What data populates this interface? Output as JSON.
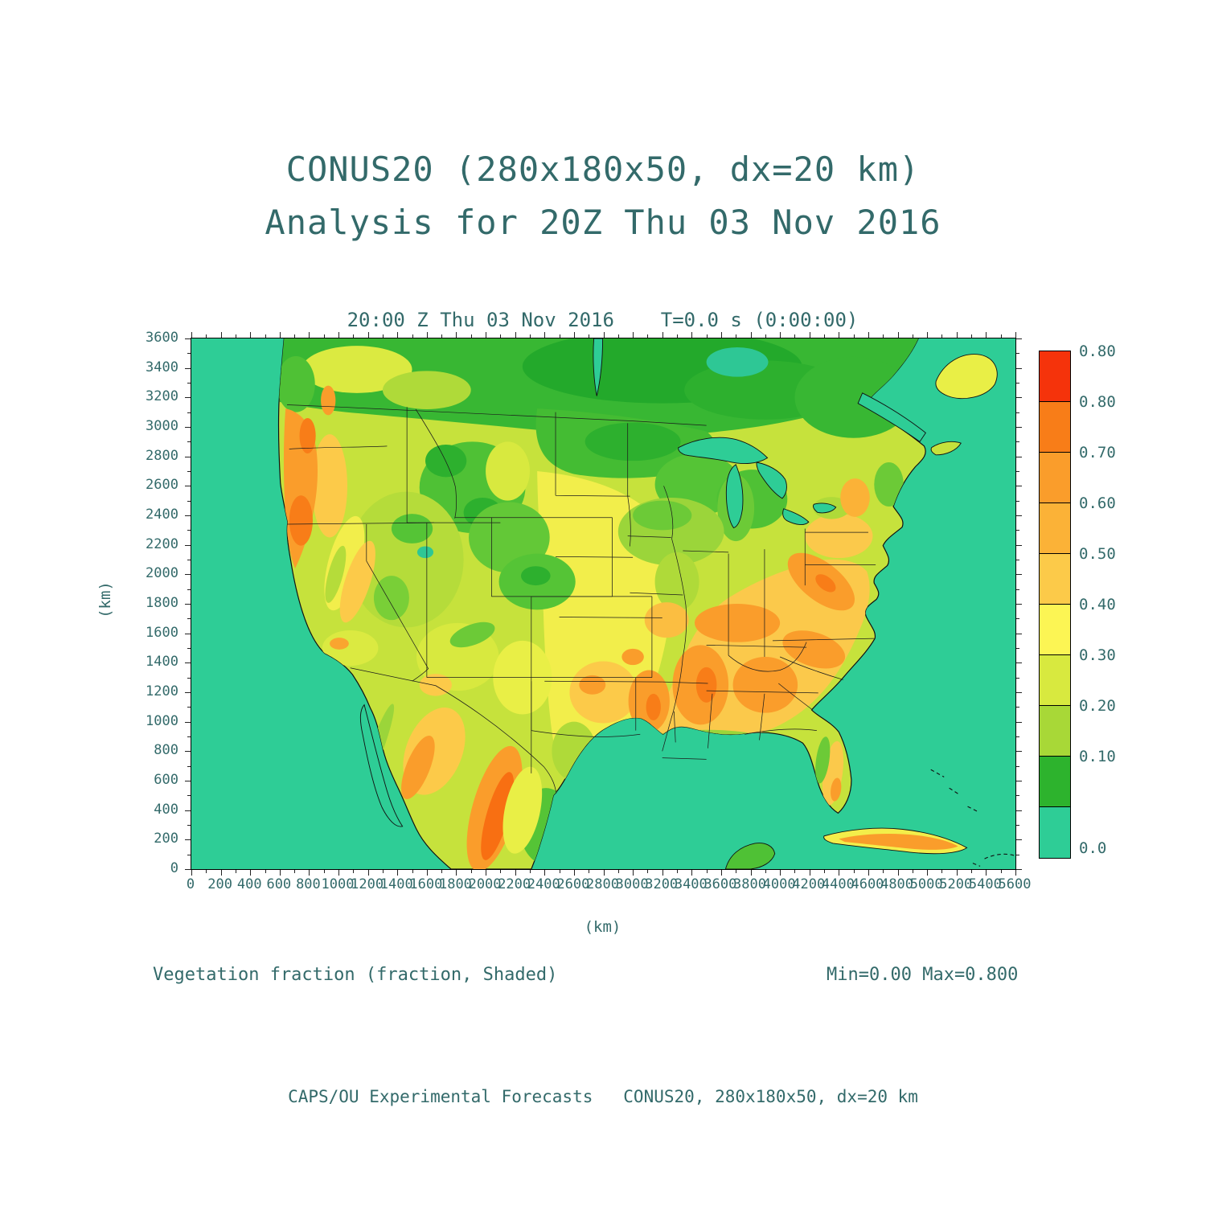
{
  "page": {
    "title_line1": "CONUS20 (280x180x50, dx=20 km)",
    "title_line2": "Analysis for 20Z Thu 03 Nov 2016",
    "plot_header": "20:00 Z Thu 03 Nov 2016    T=0.0 s (0:00:00)",
    "footer_left": "Vegetation fraction (fraction, Shaded)",
    "footer_right": "Min=0.00 Max=0.800",
    "credit": "CAPS/OU Experimental Forecasts   CONUS20, 280x180x50, dx=20 km",
    "x_axis_title": "(km)",
    "y_axis_title": "(km)"
  },
  "axes": {
    "x_ticks": [
      0,
      200,
      400,
      600,
      800,
      1000,
      1200,
      1400,
      1600,
      1800,
      2000,
      2200,
      2400,
      2600,
      2800,
      3000,
      3200,
      3400,
      3600,
      3800,
      4000,
      4200,
      4400,
      4600,
      4800,
      5000,
      5200,
      5400,
      5600
    ],
    "y_ticks": [
      0,
      200,
      400,
      600,
      800,
      1000,
      1200,
      1400,
      1600,
      1800,
      2000,
      2200,
      2400,
      2600,
      2800,
      3000,
      3200,
      3400,
      3600
    ]
  },
  "colorbar": {
    "labels": [
      "0.80",
      "0.80",
      "0.70",
      "0.60",
      "0.50",
      "0.40",
      "0.30",
      "0.20",
      "0.10",
      "0.0"
    ],
    "colors_top_to_bottom": [
      "#F5330B",
      "#F87D18",
      "#FA9D2B",
      "#FBB237",
      "#FCCA49",
      "#FCF554",
      "#D8E93F",
      "#A8D837",
      "#2DB32D",
      "#2ECD96"
    ]
  },
  "chart_data": {
    "type": "heatmap",
    "title": "CONUS20 (280x180x50, dx=20 km) — Analysis for 20Z Thu 03 Nov 2016",
    "field": "Vegetation fraction",
    "units": "fraction",
    "style": "Shaded",
    "valid_time": "20:00 Z Thu 03 Nov 2016",
    "forecast_time": "T=0.0 s (0:00:00)",
    "min": 0.0,
    "max": 0.8,
    "xlabel": "(km)",
    "ylabel": "(km)",
    "xlim": [
      0,
      5600
    ],
    "ylim": [
      0,
      3600
    ],
    "x_tick_step": 200,
    "y_tick_step": 200,
    "grid": "280x180x50",
    "dx": "20 km",
    "levels": [
      0.0,
      0.1,
      0.2,
      0.3,
      0.4,
      0.5,
      0.6,
      0.7,
      0.8
    ],
    "palette_low_to_high": [
      "#2ECD96",
      "#2DB32D",
      "#A8D837",
      "#D8E93F",
      "#FCF554",
      "#FCCA49",
      "#FBB237",
      "#FA9D2B",
      "#F87D18",
      "#F5330B"
    ],
    "region": "Contiguous United States with southern Canada, northern Mexico, Gulf of Mexico, Great Lakes and Cuba",
    "notes": "Ocean/water shaded 0.0-0.10 teal. Low fractions (0.1-0.2 green) over central Canada and northern plains; mid fractions (0.3-0.5 yellow-green/yellow) over plains, southwest and interior west; high fractions (0.5-0.7 gold/orange) over the Pacific coast ranges, southeast US, Appalachians, Sierra Madre in Mexico and Cuba."
  }
}
